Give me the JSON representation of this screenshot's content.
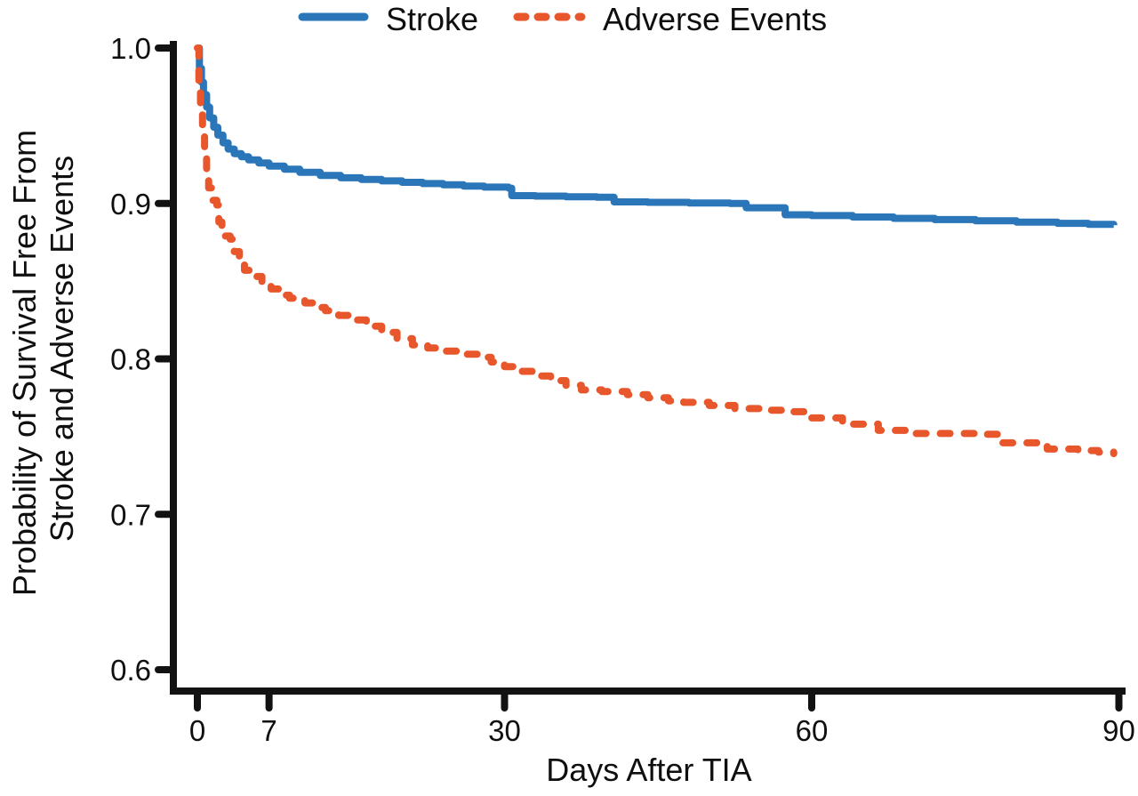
{
  "chart_data": {
    "type": "line",
    "subtype": "kaplan-meier-step",
    "title": "",
    "xlabel": "Days After TIA",
    "ylabel_lines": [
      "Probability of Survival Free From",
      "Stroke and Adverse Events"
    ],
    "x_ticks": [
      0,
      7,
      30,
      60,
      90
    ],
    "y_ticks": [
      "1.0",
      "0.9",
      "0.8",
      "0.7",
      "0.6"
    ],
    "y_tick_values": [
      1.0,
      0.9,
      0.8,
      0.7,
      0.6
    ],
    "xlim": [
      0,
      90
    ],
    "ylim": [
      0.586,
      1.0
    ],
    "grid": false,
    "legend_position": "top",
    "series": [
      {
        "name": "Stroke",
        "color": "#2a76b8",
        "style": "solid",
        "points": [
          [
            0,
            1.0
          ],
          [
            0.2,
            0.987
          ],
          [
            0.4,
            0.978
          ],
          [
            0.6,
            0.97
          ],
          [
            0.9,
            0.962
          ],
          [
            1.2,
            0.955
          ],
          [
            1.6,
            0.949
          ],
          [
            2.0,
            0.944
          ],
          [
            2.5,
            0.939
          ],
          [
            3.0,
            0.935
          ],
          [
            3.6,
            0.932
          ],
          [
            4.3,
            0.93
          ],
          [
            5.0,
            0.928
          ],
          [
            6.0,
            0.926
          ],
          [
            7.0,
            0.924
          ],
          [
            8.5,
            0.922
          ],
          [
            10,
            0.92
          ],
          [
            12,
            0.918
          ],
          [
            14,
            0.9165
          ],
          [
            16,
            0.9155
          ],
          [
            18,
            0.9145
          ],
          [
            20,
            0.9136
          ],
          [
            22,
            0.9128
          ],
          [
            24,
            0.912
          ],
          [
            26,
            0.9112
          ],
          [
            28,
            0.9105
          ],
          [
            30.4,
            0.9098
          ],
          [
            30.7,
            0.905
          ],
          [
            33,
            0.9047
          ],
          [
            36,
            0.9043
          ],
          [
            39,
            0.904
          ],
          [
            40.7,
            0.901
          ],
          [
            44,
            0.9007
          ],
          [
            48,
            0.9003
          ],
          [
            52,
            0.9
          ],
          [
            53.6,
            0.8972
          ],
          [
            57.4,
            0.8927
          ],
          [
            60,
            0.8922
          ],
          [
            64,
            0.8913
          ],
          [
            68,
            0.8904
          ],
          [
            72,
            0.8896
          ],
          [
            76,
            0.8888
          ],
          [
            80,
            0.888
          ],
          [
            84,
            0.8872
          ],
          [
            87,
            0.8866
          ],
          [
            89.5,
            0.886
          ]
        ]
      },
      {
        "name": "Adverse Events",
        "color": "#e8562c",
        "style": "dashed",
        "points": [
          [
            0,
            1.0
          ],
          [
            0.15,
            0.975
          ],
          [
            0.3,
            0.958
          ],
          [
            0.5,
            0.944
          ],
          [
            0.7,
            0.932
          ],
          [
            0.9,
            0.92
          ],
          [
            1.1,
            0.91
          ],
          [
            1.4,
            0.902
          ],
          [
            1.9,
            0.899
          ],
          [
            2.1,
            0.888
          ],
          [
            2.4,
            0.879
          ],
          [
            3.2,
            0.877
          ],
          [
            3.6,
            0.869
          ],
          [
            4.1,
            0.861
          ],
          [
            4.6,
            0.857
          ],
          [
            5.4,
            0.853
          ],
          [
            6.3,
            0.849
          ],
          [
            7.2,
            0.845
          ],
          [
            7.9,
            0.841
          ],
          [
            9,
            0.839
          ],
          [
            10.5,
            0.836
          ],
          [
            11.5,
            0.833
          ],
          [
            12.5,
            0.831
          ],
          [
            13.8,
            0.828
          ],
          [
            15,
            0.825
          ],
          [
            16.5,
            0.821
          ],
          [
            18,
            0.817
          ],
          [
            19.5,
            0.813
          ],
          [
            21,
            0.809
          ],
          [
            22.5,
            0.807
          ],
          [
            24,
            0.805
          ],
          [
            26,
            0.803
          ],
          [
            27.5,
            0.801
          ],
          [
            28.7,
            0.798
          ],
          [
            30,
            0.795
          ],
          [
            31.5,
            0.792
          ],
          [
            33,
            0.789
          ],
          [
            34.5,
            0.786
          ],
          [
            36,
            0.783
          ],
          [
            37.5,
            0.78
          ],
          [
            39.5,
            0.779
          ],
          [
            42,
            0.777
          ],
          [
            44,
            0.775
          ],
          [
            46,
            0.773
          ],
          [
            47.5,
            0.772
          ],
          [
            50,
            0.77
          ],
          [
            52.5,
            0.768
          ],
          [
            55,
            0.767
          ],
          [
            57.5,
            0.766
          ],
          [
            59.8,
            0.762
          ],
          [
            63,
            0.758
          ],
          [
            66.5,
            0.754
          ],
          [
            69.5,
            0.752
          ],
          [
            76,
            0.7515
          ],
          [
            78.6,
            0.746
          ],
          [
            83,
            0.742
          ],
          [
            86,
            0.741
          ],
          [
            88,
            0.74
          ],
          [
            89.5,
            0.739
          ]
        ]
      }
    ]
  },
  "colors": {
    "axis": "#121212",
    "text": "#0f0f0f",
    "background": "#ffffff",
    "stroke_series": "#2a76b8",
    "adverse_series": "#e8562c"
  }
}
